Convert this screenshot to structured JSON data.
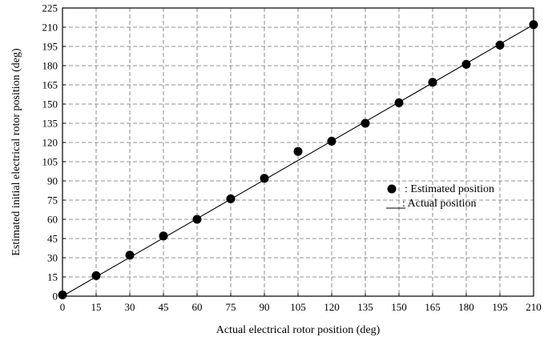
{
  "chart_data": {
    "type": "scatter",
    "xlabel": "Actual electrical rotor position  (deg)",
    "ylabel": "Estimated initial electrical rotor position  (deg)",
    "xlim": [
      0,
      210
    ],
    "ylim": [
      0,
      225
    ],
    "x_ticks": [
      0,
      15,
      30,
      45,
      60,
      75,
      90,
      105,
      120,
      135,
      150,
      165,
      180,
      195,
      210
    ],
    "y_ticks": [
      0,
      15,
      30,
      45,
      60,
      75,
      90,
      105,
      120,
      135,
      150,
      165,
      180,
      195,
      210,
      225
    ],
    "grid": true,
    "legend_position": "right",
    "series": [
      {
        "name": ": Estimated position",
        "style": "marker",
        "color": "#000000",
        "x": [
          0,
          15,
          30,
          45,
          60,
          75,
          90,
          105,
          120,
          135,
          150,
          165,
          180,
          195,
          210
        ],
        "y": [
          1,
          16,
          32,
          47,
          60,
          76,
          92,
          113,
          121,
          135,
          151,
          167,
          181,
          196,
          212
        ]
      },
      {
        "name": ": Actual position",
        "style": "line",
        "color": "#000000",
        "x": [
          0,
          210
        ],
        "y": [
          0,
          212
        ]
      }
    ]
  }
}
